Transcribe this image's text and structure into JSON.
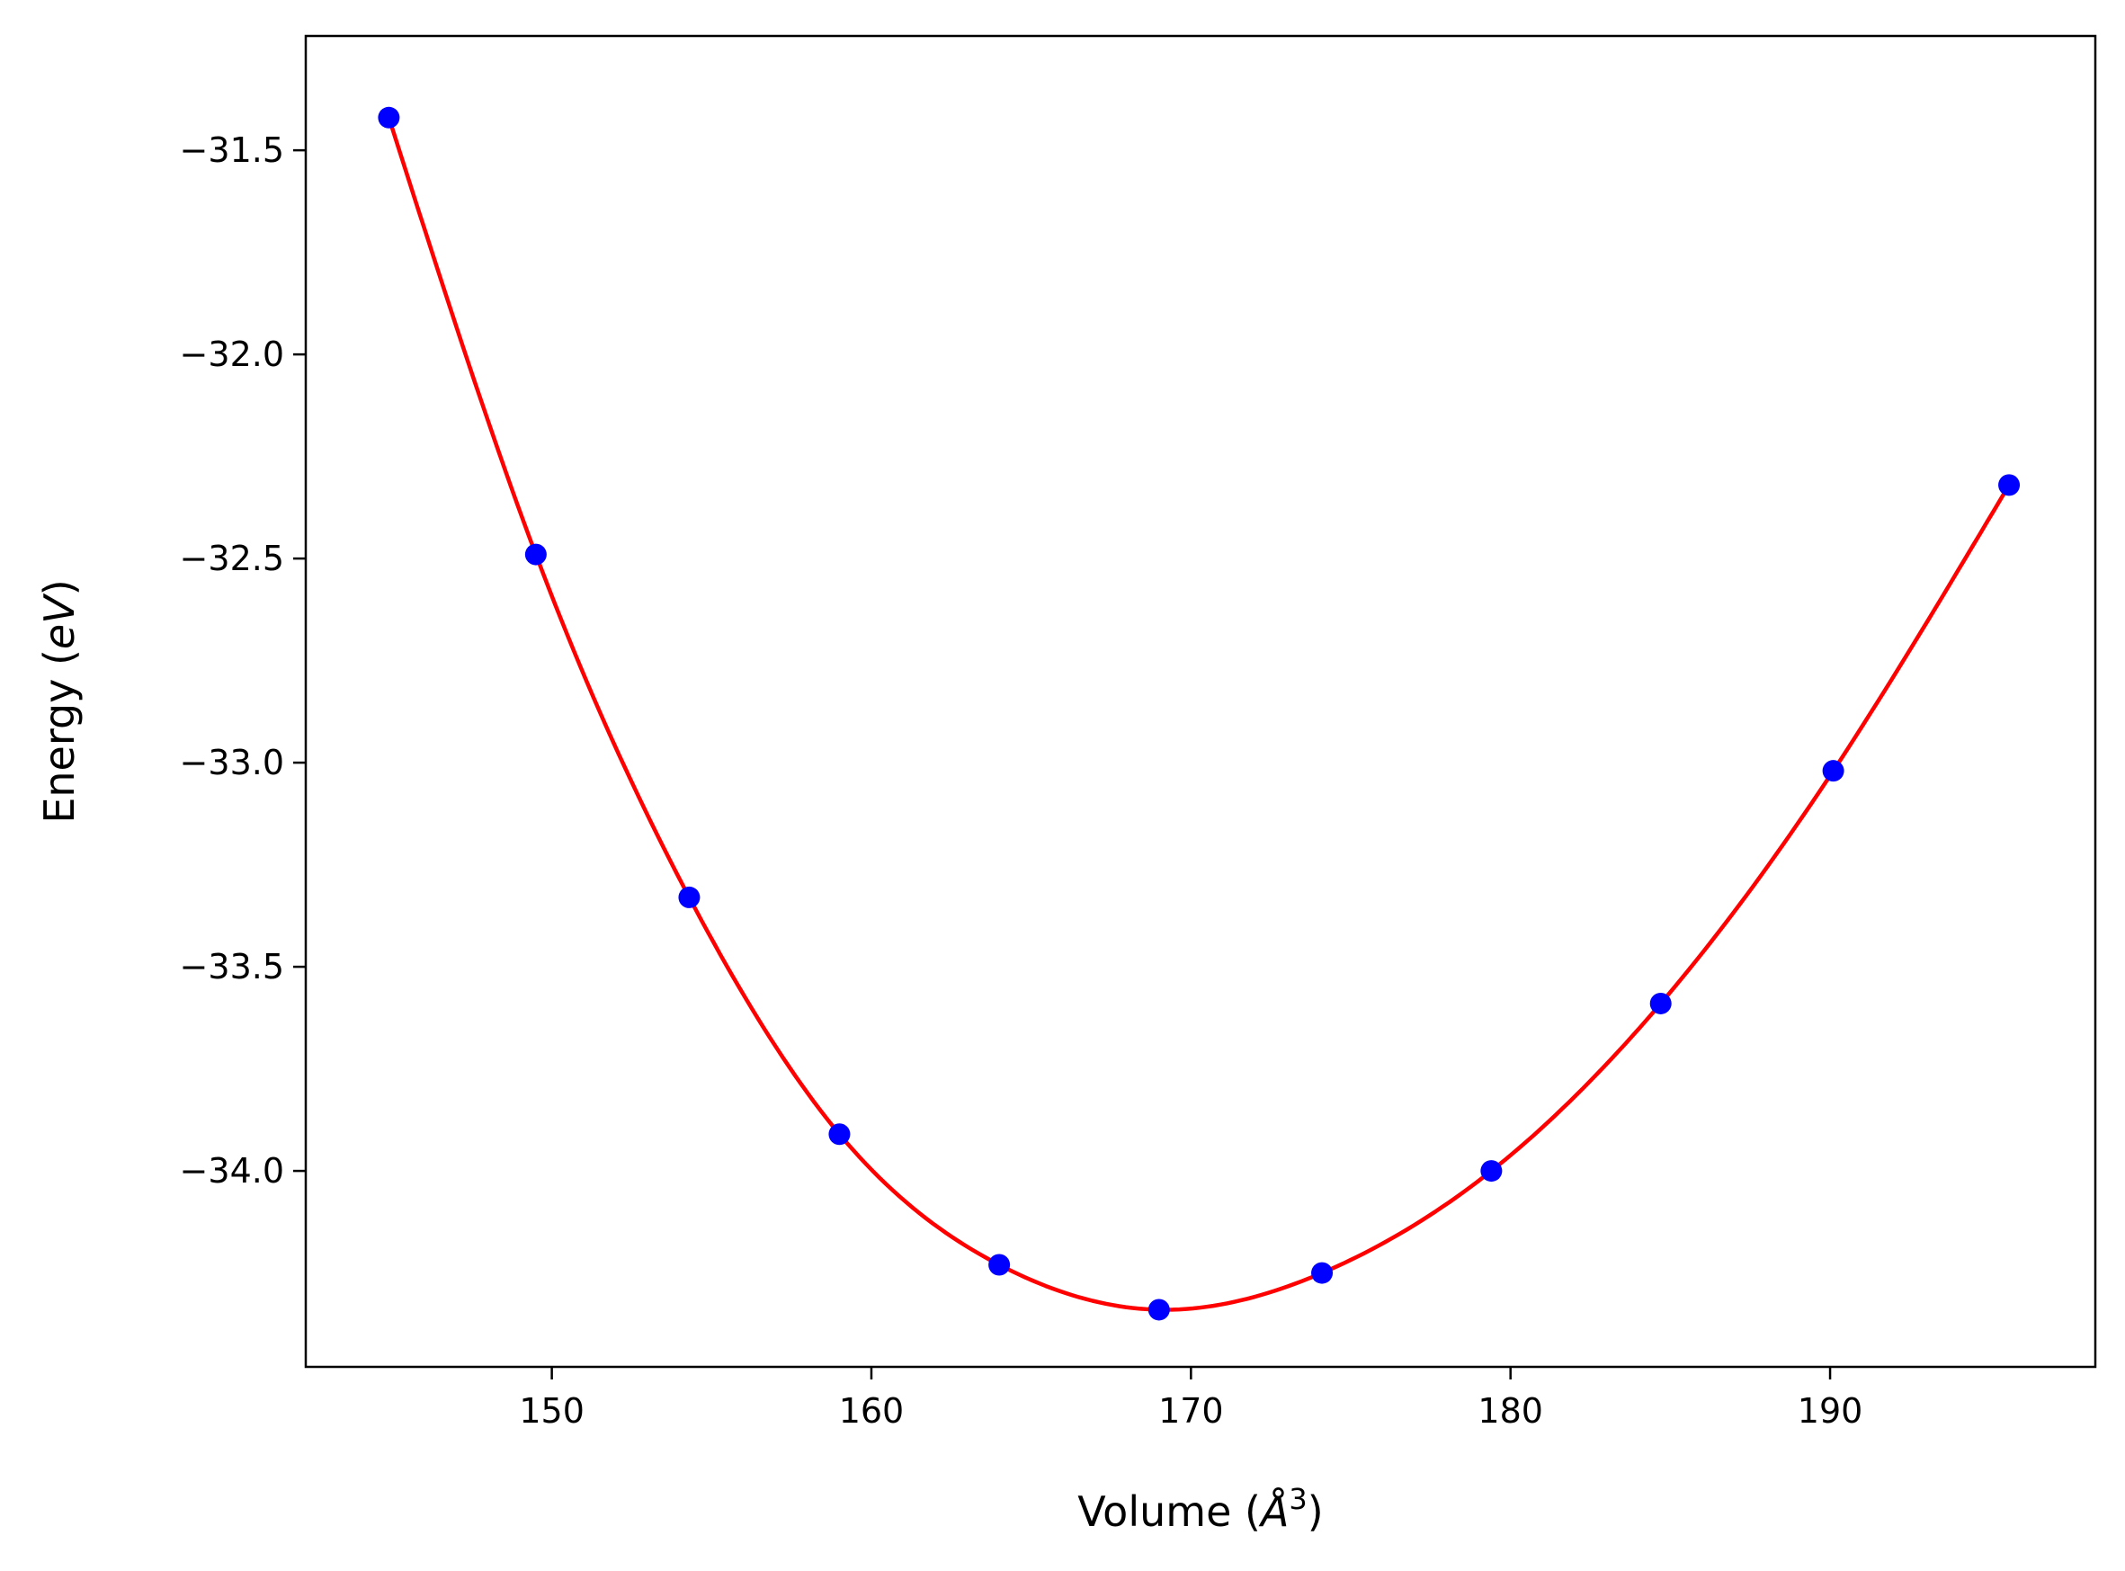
{
  "chart_data": {
    "type": "scatter",
    "title": "",
    "xlabel": {
      "prefix": "Volume (",
      "symbol": "Å",
      "sup": "3",
      "suffix": ")"
    },
    "ylabel": {
      "prefix": "Energy (",
      "symbol": "eV",
      "suffix": ")"
    },
    "xlim": [
      142.3,
      198.3
    ],
    "ylim": [
      -34.48,
      -31.22
    ],
    "xticks": [
      150,
      160,
      170,
      180,
      190
    ],
    "yticks": [
      -31.5,
      -32.0,
      -32.5,
      -33.0,
      -33.5,
      -34.0
    ],
    "xtick_labels": [
      "150",
      "160",
      "170",
      "180",
      "190"
    ],
    "ytick_labels": [
      "−31.5",
      "−32.0",
      "−32.5",
      "−33.0",
      "−33.5",
      "−34.0"
    ],
    "grid": false,
    "legend": "none",
    "series": [
      {
        "kind": "points",
        "color": "#0000ff",
        "x": [
          144.9,
          149.5,
          154.3,
          159.0,
          164.0,
          169.0,
          174.1,
          179.4,
          184.7,
          190.1,
          195.6
        ],
        "y": [
          -31.42,
          -32.49,
          -33.33,
          -33.91,
          -34.23,
          -34.34,
          -34.25,
          -34.0,
          -33.59,
          -33.02,
          -32.32
        ]
      },
      {
        "kind": "fit-curve",
        "color": "#ff0000",
        "x": [
          144.9,
          149.5,
          154.3,
          159.0,
          164.0,
          169.0,
          174.1,
          179.4,
          184.7,
          190.1,
          195.6
        ],
        "y": [
          -31.42,
          -32.49,
          -33.33,
          -33.91,
          -34.23,
          -34.34,
          -34.25,
          -34.0,
          -33.59,
          -33.02,
          -32.32
        ]
      }
    ]
  }
}
